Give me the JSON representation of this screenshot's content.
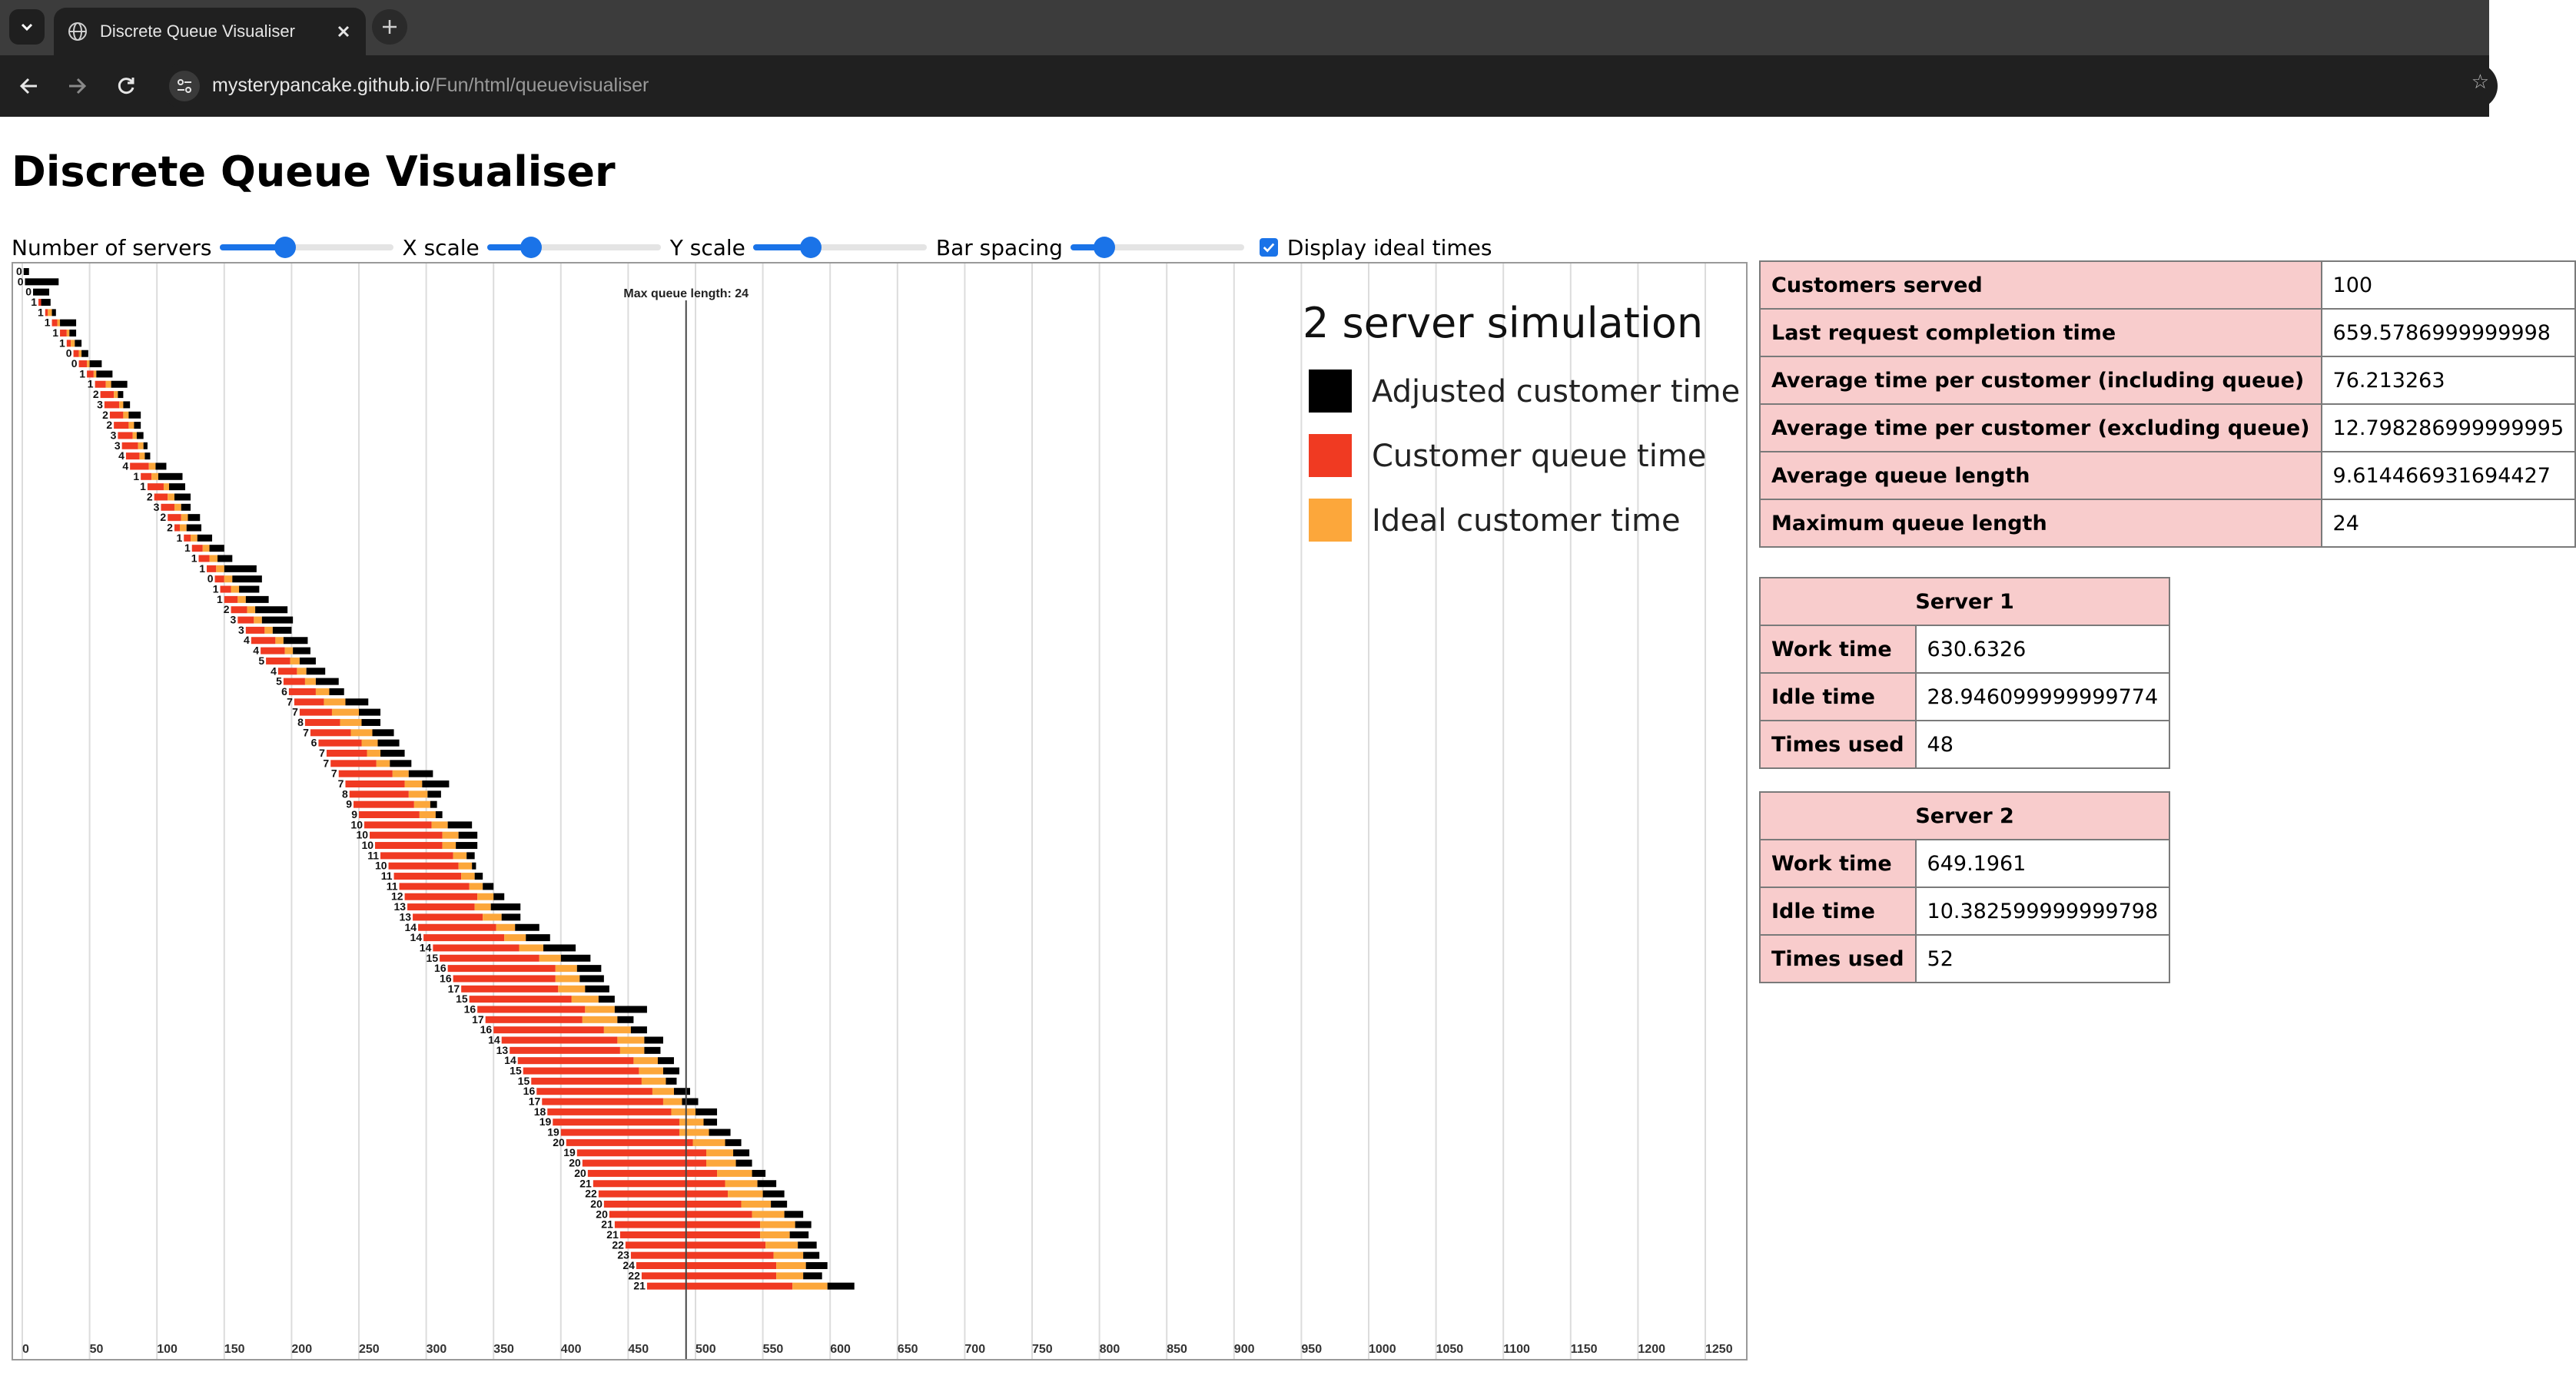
{
  "browser": {
    "tab_title": "Discrete Queue Visualiser",
    "url_host": "mysterypancake.github.io",
    "url_path": "/Fun/html/queuevisualiser"
  },
  "page": {
    "title": "Discrete Queue Visualiser"
  },
  "controls": {
    "servers_label": "Number of servers",
    "servers_value": 0.36,
    "xscale_label": "X scale",
    "xscale_value": 0.22,
    "yscale_label": "Y scale",
    "yscale_value": 0.31,
    "spacing_label": "Bar spacing",
    "spacing_value": 0.15,
    "ideal_label": "Display ideal times",
    "ideal_checked": true
  },
  "summary": {
    "rows": [
      {
        "label": "Customers served",
        "value": "100"
      },
      {
        "label": "Last request completion time",
        "value": "659.5786999999998"
      },
      {
        "label": "Average time per customer (including queue)",
        "value": "76.213263"
      },
      {
        "label": "Average time per customer (excluding queue)",
        "value": "12.798286999999995"
      },
      {
        "label": "Average queue length",
        "value": "9.614466931694427"
      },
      {
        "label": "Maximum queue length",
        "value": "24"
      }
    ]
  },
  "servers": [
    {
      "header": "Server 1",
      "rows": [
        {
          "label": "Work time",
          "value": "630.6326"
        },
        {
          "label": "Idle time",
          "value": "28.946099999999774"
        },
        {
          "label": "Times used",
          "value": "48"
        }
      ]
    },
    {
      "header": "Server 2",
      "rows": [
        {
          "label": "Work time",
          "value": "649.1961"
        },
        {
          "label": "Idle time",
          "value": "10.382599999999798"
        },
        {
          "label": "Times used",
          "value": "52"
        }
      ]
    }
  ],
  "colors": {
    "adjusted": "#000000",
    "queue": "#f03a22",
    "ideal": "#fca73b",
    "accent": "#1a73e8",
    "table_header": "#f8cccc"
  },
  "chart_data": {
    "type": "bar",
    "title": "2 server simulation",
    "legend": [
      "Adjusted customer time",
      "Customer queue time",
      "Ideal customer time"
    ],
    "legend_position": "top-right",
    "x_ticks": [
      0,
      50,
      100,
      150,
      200,
      250,
      300,
      350,
      400,
      450,
      500,
      550,
      600,
      650,
      700,
      750,
      800,
      850,
      900,
      950,
      1000,
      1050,
      1100,
      1150,
      1200,
      1250
    ],
    "xlim": [
      0,
      1290
    ],
    "grid": true,
    "max_queue_label": "Max queue length: 24",
    "max_queue_time": 493,
    "customers": [
      {
        "arrival": 1,
        "queue_len": 0,
        "wait": 0,
        "ideal": 0,
        "adj": 4
      },
      {
        "arrival": 2,
        "queue_len": 0,
        "wait": 0,
        "ideal": 0,
        "adj": 25
      },
      {
        "arrival": 8,
        "queue_len": 0,
        "wait": 0,
        "ideal": 0,
        "adj": 12
      },
      {
        "arrival": 12,
        "queue_len": 1,
        "wait": 2,
        "ideal": 0,
        "adj": 7
      },
      {
        "arrival": 17,
        "queue_len": 1,
        "wait": 2,
        "ideal": 3,
        "adj": 3
      },
      {
        "arrival": 22,
        "queue_len": 1,
        "wait": 4,
        "ideal": 2,
        "adj": 12
      },
      {
        "arrival": 28,
        "queue_len": 1,
        "wait": 5,
        "ideal": 2,
        "adj": 5
      },
      {
        "arrival": 33,
        "queue_len": 1,
        "wait": 3,
        "ideal": 3,
        "adj": 5
      },
      {
        "arrival": 38,
        "queue_len": 0,
        "wait": 4,
        "ideal": 2,
        "adj": 5
      },
      {
        "arrival": 42,
        "queue_len": 0,
        "wait": 6,
        "ideal": 2,
        "adj": 9
      },
      {
        "arrival": 48,
        "queue_len": 1,
        "wait": 5,
        "ideal": 2,
        "adj": 12
      },
      {
        "arrival": 54,
        "queue_len": 1,
        "wait": 8,
        "ideal": 4,
        "adj": 12
      },
      {
        "arrival": 58,
        "queue_len": 2,
        "wait": 10,
        "ideal": 3,
        "adj": 4
      },
      {
        "arrival": 61,
        "queue_len": 3,
        "wait": 11,
        "ideal": 3,
        "adj": 5
      },
      {
        "arrival": 65,
        "queue_len": 2,
        "wait": 10,
        "ideal": 4,
        "adj": 9
      },
      {
        "arrival": 68,
        "queue_len": 2,
        "wait": 11,
        "ideal": 4,
        "adj": 5
      },
      {
        "arrival": 71,
        "queue_len": 3,
        "wait": 11,
        "ideal": 3,
        "adj": 5
      },
      {
        "arrival": 74,
        "queue_len": 3,
        "wait": 12,
        "ideal": 4,
        "adj": 3
      },
      {
        "arrival": 77,
        "queue_len": 4,
        "wait": 10,
        "ideal": 4,
        "adj": 4
      },
      {
        "arrival": 80,
        "queue_len": 4,
        "wait": 14,
        "ideal": 5,
        "adj": 8
      },
      {
        "arrival": 88,
        "queue_len": 1,
        "wait": 8,
        "ideal": 5,
        "adj": 18
      },
      {
        "arrival": 93,
        "queue_len": 1,
        "wait": 12,
        "ideal": 4,
        "adj": 12
      },
      {
        "arrival": 98,
        "queue_len": 2,
        "wait": 10,
        "ideal": 5,
        "adj": 12
      },
      {
        "arrival": 103,
        "queue_len": 3,
        "wait": 10,
        "ideal": 5,
        "adj": 7
      },
      {
        "arrival": 108,
        "queue_len": 2,
        "wait": 10,
        "ideal": 5,
        "adj": 9
      },
      {
        "arrival": 113,
        "queue_len": 2,
        "wait": 4,
        "ideal": 5,
        "adj": 11
      },
      {
        "arrival": 120,
        "queue_len": 1,
        "wait": 5,
        "ideal": 5,
        "adj": 11
      },
      {
        "arrival": 126,
        "queue_len": 1,
        "wait": 8,
        "ideal": 5,
        "adj": 11
      },
      {
        "arrival": 131,
        "queue_len": 1,
        "wait": 8,
        "ideal": 6,
        "adj": 11
      },
      {
        "arrival": 137,
        "queue_len": 1,
        "wait": 7,
        "ideal": 6,
        "adj": 24
      },
      {
        "arrival": 143,
        "queue_len": 0,
        "wait": 7,
        "ideal": 6,
        "adj": 22
      },
      {
        "arrival": 147,
        "queue_len": 1,
        "wait": 8,
        "ideal": 6,
        "adj": 15
      },
      {
        "arrival": 150,
        "queue_len": 1,
        "wait": 10,
        "ideal": 6,
        "adj": 17
      },
      {
        "arrival": 155,
        "queue_len": 2,
        "wait": 12,
        "ideal": 6,
        "adj": 24
      },
      {
        "arrival": 160,
        "queue_len": 3,
        "wait": 12,
        "ideal": 6,
        "adj": 23
      },
      {
        "arrival": 166,
        "queue_len": 3,
        "wait": 14,
        "ideal": 6,
        "adj": 14
      },
      {
        "arrival": 170,
        "queue_len": 4,
        "wait": 18,
        "ideal": 6,
        "adj": 18
      },
      {
        "arrival": 177,
        "queue_len": 4,
        "wait": 18,
        "ideal": 6,
        "adj": 13
      },
      {
        "arrival": 181,
        "queue_len": 5,
        "wait": 18,
        "ideal": 7,
        "adj": 12
      },
      {
        "arrival": 190,
        "queue_len": 4,
        "wait": 14,
        "ideal": 7,
        "adj": 14
      },
      {
        "arrival": 194,
        "queue_len": 5,
        "wait": 16,
        "ideal": 8,
        "adj": 17
      },
      {
        "arrival": 198,
        "queue_len": 6,
        "wait": 20,
        "ideal": 10,
        "adj": 11
      },
      {
        "arrival": 202,
        "queue_len": 7,
        "wait": 22,
        "ideal": 16,
        "adj": 17
      },
      {
        "arrival": 206,
        "queue_len": 7,
        "wait": 24,
        "ideal": 20,
        "adj": 16
      },
      {
        "arrival": 210,
        "queue_len": 8,
        "wait": 26,
        "ideal": 16,
        "adj": 14
      },
      {
        "arrival": 214,
        "queue_len": 7,
        "wait": 30,
        "ideal": 16,
        "adj": 16
      },
      {
        "arrival": 220,
        "queue_len": 6,
        "wait": 32,
        "ideal": 12,
        "adj": 16
      },
      {
        "arrival": 226,
        "queue_len": 7,
        "wait": 30,
        "ideal": 10,
        "adj": 18
      },
      {
        "arrival": 229,
        "queue_len": 7,
        "wait": 34,
        "ideal": 10,
        "adj": 16
      },
      {
        "arrival": 235,
        "queue_len": 7,
        "wait": 40,
        "ideal": 12,
        "adj": 18
      },
      {
        "arrival": 240,
        "queue_len": 7,
        "wait": 44,
        "ideal": 13,
        "adj": 20
      },
      {
        "arrival": 243,
        "queue_len": 8,
        "wait": 44,
        "ideal": 14,
        "adj": 10
      },
      {
        "arrival": 246,
        "queue_len": 9,
        "wait": 45,
        "ideal": 12,
        "adj": 5
      },
      {
        "arrival": 250,
        "queue_len": 9,
        "wait": 45,
        "ideal": 12,
        "adj": 5
      },
      {
        "arrival": 254,
        "queue_len": 10,
        "wait": 50,
        "ideal": 12,
        "adj": 18
      },
      {
        "arrival": 258,
        "queue_len": 10,
        "wait": 54,
        "ideal": 12,
        "adj": 14
      },
      {
        "arrival": 262,
        "queue_len": 10,
        "wait": 50,
        "ideal": 10,
        "adj": 16
      },
      {
        "arrival": 266,
        "queue_len": 11,
        "wait": 54,
        "ideal": 10,
        "adj": 6
      },
      {
        "arrival": 272,
        "queue_len": 10,
        "wait": 52,
        "ideal": 10,
        "adj": 3
      },
      {
        "arrival": 276,
        "queue_len": 11,
        "wait": 50,
        "ideal": 10,
        "adj": 6
      },
      {
        "arrival": 280,
        "queue_len": 11,
        "wait": 52,
        "ideal": 10,
        "adj": 8
      },
      {
        "arrival": 284,
        "queue_len": 12,
        "wait": 54,
        "ideal": 12,
        "adj": 8
      },
      {
        "arrival": 286,
        "queue_len": 13,
        "wait": 50,
        "ideal": 12,
        "adj": 22
      },
      {
        "arrival": 290,
        "queue_len": 13,
        "wait": 52,
        "ideal": 14,
        "adj": 14
      },
      {
        "arrival": 294,
        "queue_len": 14,
        "wait": 58,
        "ideal": 14,
        "adj": 18
      },
      {
        "arrival": 298,
        "queue_len": 14,
        "wait": 60,
        "ideal": 16,
        "adj": 18
      },
      {
        "arrival": 305,
        "queue_len": 14,
        "wait": 64,
        "ideal": 18,
        "adj": 24
      },
      {
        "arrival": 310,
        "queue_len": 15,
        "wait": 74,
        "ideal": 16,
        "adj": 22
      },
      {
        "arrival": 316,
        "queue_len": 16,
        "wait": 80,
        "ideal": 16,
        "adj": 18
      },
      {
        "arrival": 320,
        "queue_len": 16,
        "wait": 76,
        "ideal": 18,
        "adj": 18
      },
      {
        "arrival": 326,
        "queue_len": 17,
        "wait": 72,
        "ideal": 20,
        "adj": 18
      },
      {
        "arrival": 332,
        "queue_len": 15,
        "wait": 76,
        "ideal": 20,
        "adj": 12
      },
      {
        "arrival": 338,
        "queue_len": 16,
        "wait": 80,
        "ideal": 22,
        "adj": 24
      },
      {
        "arrival": 344,
        "queue_len": 17,
        "wait": 72,
        "ideal": 26,
        "adj": 12
      },
      {
        "arrival": 350,
        "queue_len": 16,
        "wait": 82,
        "ideal": 20,
        "adj": 12
      },
      {
        "arrival": 356,
        "queue_len": 14,
        "wait": 86,
        "ideal": 20,
        "adj": 14
      },
      {
        "arrival": 362,
        "queue_len": 13,
        "wait": 82,
        "ideal": 18,
        "adj": 12
      },
      {
        "arrival": 368,
        "queue_len": 14,
        "wait": 86,
        "ideal": 18,
        "adj": 12
      },
      {
        "arrival": 372,
        "queue_len": 15,
        "wait": 86,
        "ideal": 18,
        "adj": 12
      },
      {
        "arrival": 378,
        "queue_len": 15,
        "wait": 82,
        "ideal": 18,
        "adj": 8
      },
      {
        "arrival": 382,
        "queue_len": 16,
        "wait": 86,
        "ideal": 16,
        "adj": 12
      },
      {
        "arrival": 386,
        "queue_len": 17,
        "wait": 90,
        "ideal": 14,
        "adj": 12
      },
      {
        "arrival": 390,
        "queue_len": 18,
        "wait": 92,
        "ideal": 18,
        "adj": 16
      },
      {
        "arrival": 394,
        "queue_len": 19,
        "wait": 94,
        "ideal": 18,
        "adj": 10
      },
      {
        "arrival": 400,
        "queue_len": 19,
        "wait": 88,
        "ideal": 22,
        "adj": 16
      },
      {
        "arrival": 404,
        "queue_len": 20,
        "wait": 94,
        "ideal": 24,
        "adj": 12
      },
      {
        "arrival": 412,
        "queue_len": 19,
        "wait": 96,
        "ideal": 20,
        "adj": 12
      },
      {
        "arrival": 416,
        "queue_len": 20,
        "wait": 92,
        "ideal": 22,
        "adj": 12
      },
      {
        "arrival": 420,
        "queue_len": 20,
        "wait": 96,
        "ideal": 26,
        "adj": 10
      },
      {
        "arrival": 424,
        "queue_len": 21,
        "wait": 98,
        "ideal": 24,
        "adj": 14
      },
      {
        "arrival": 428,
        "queue_len": 22,
        "wait": 96,
        "ideal": 26,
        "adj": 16
      },
      {
        "arrival": 432,
        "queue_len": 20,
        "wait": 102,
        "ideal": 22,
        "adj": 12
      },
      {
        "arrival": 436,
        "queue_len": 20,
        "wait": 106,
        "ideal": 24,
        "adj": 14
      },
      {
        "arrival": 440,
        "queue_len": 21,
        "wait": 108,
        "ideal": 26,
        "adj": 12
      },
      {
        "arrival": 444,
        "queue_len": 21,
        "wait": 104,
        "ideal": 22,
        "adj": 14
      },
      {
        "arrival": 448,
        "queue_len": 22,
        "wait": 104,
        "ideal": 24,
        "adj": 14
      },
      {
        "arrival": 452,
        "queue_len": 23,
        "wait": 106,
        "ideal": 22,
        "adj": 12
      },
      {
        "arrival": 456,
        "queue_len": 24,
        "wait": 104,
        "ideal": 22,
        "adj": 16
      },
      {
        "arrival": 460,
        "queue_len": 22,
        "wait": 100,
        "ideal": 20,
        "adj": 14
      },
      {
        "arrival": 464,
        "queue_len": 21,
        "wait": 108,
        "ideal": 26,
        "adj": 20
      }
    ]
  }
}
